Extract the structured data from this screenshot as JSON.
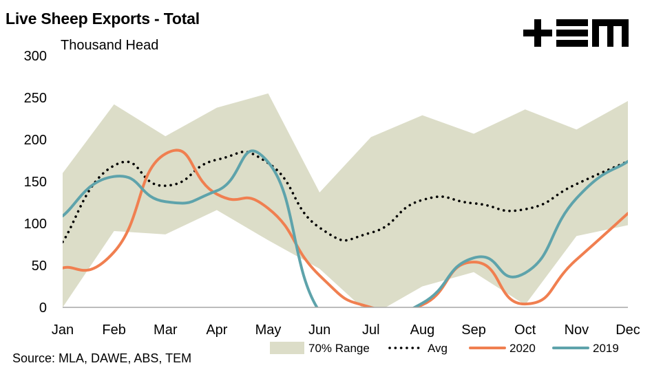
{
  "header": {
    "title": "Live Sheep Exports - Total",
    "subtitle": "Thousand Head",
    "logo_text": "+EM",
    "logo_icon": "tem-logo-icon"
  },
  "footer": {
    "source": "Source: MLA, DAWE, ABS, TEM"
  },
  "colors": {
    "range": "#dcddc8",
    "avg": "#000000",
    "s2020": "#f07f50",
    "s2019": "#5ea3ab",
    "axis": "#a6a6a6"
  },
  "chart_data": {
    "type": "line",
    "title": "Live Sheep Exports - Total",
    "ylabel": "Thousand Head",
    "xlabel": "",
    "categories": [
      "Jan",
      "Feb",
      "Mar",
      "Apr",
      "May",
      "Jun",
      "Jul",
      "Aug",
      "Sep",
      "Oct",
      "Nov",
      "Dec"
    ],
    "ylim": [
      0,
      300
    ],
    "yticks": [
      0,
      50,
      100,
      150,
      200,
      250,
      300
    ],
    "grid": false,
    "legend_position": "bottom-right",
    "range": {
      "name": "70% Range",
      "upper": [
        160,
        242,
        204,
        238,
        255,
        137,
        203,
        229,
        207,
        236,
        212,
        246
      ],
      "lower": [
        0,
        91,
        87,
        116,
        80,
        46,
        -10,
        25,
        42,
        3,
        85,
        98
      ]
    },
    "series": [
      {
        "name": "Avg",
        "style": "dotted",
        "values": [
          78,
          169,
          145,
          176,
          172,
          95,
          89,
          128,
          124,
          117,
          147,
          174
        ]
      },
      {
        "name": "2020",
        "style": "solid",
        "values": [
          47,
          66,
          183,
          135,
          118,
          38,
          0,
          3,
          54,
          4,
          57,
          112
        ]
      },
      {
        "name": "2019",
        "style": "solid",
        "values": [
          109,
          156,
          126,
          139,
          173,
          -5,
          -10,
          5,
          59,
          41,
          130,
          174
        ]
      }
    ]
  }
}
